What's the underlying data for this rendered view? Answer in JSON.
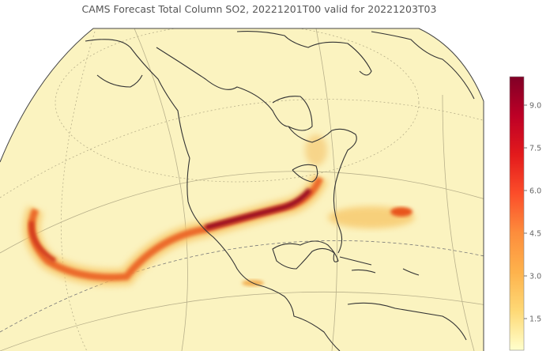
{
  "title": "CAMS Forecast Total Column SO2, 20221201T00 valid for 20221203T03",
  "colors": {
    "background": "#fbf3c0",
    "coast": "#333333",
    "plume_low": "#f7c86a",
    "plume_mid": "#e8541e",
    "plume_high": "#8c0a1a"
  },
  "colorbar": {
    "range": [
      0,
      10
    ],
    "ticks": [
      "1.5",
      "3.0",
      "4.5",
      "6.0",
      "7.5",
      "9.0"
    ],
    "colors": [
      "#ffffcc",
      "#fed976",
      "#feb24c",
      "#fd8d3c",
      "#fc4e2a",
      "#e31a1c",
      "#bd0026",
      "#800026"
    ]
  }
}
